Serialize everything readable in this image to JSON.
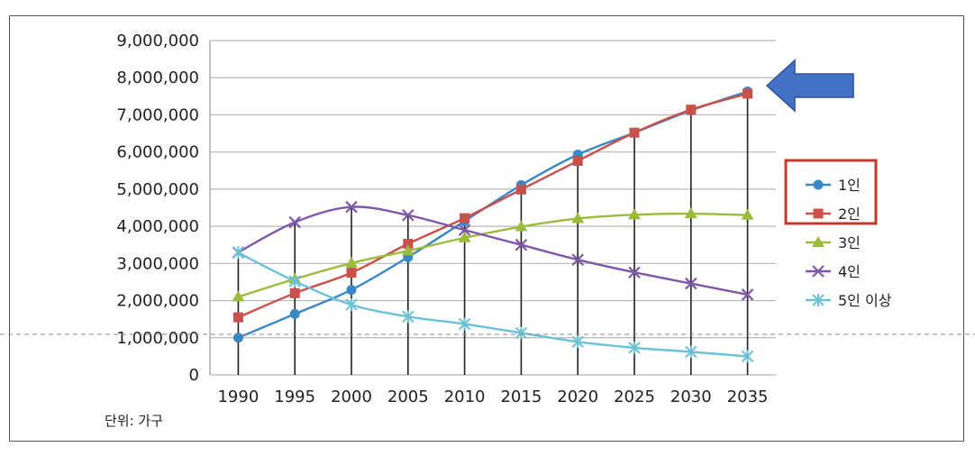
{
  "chart_data": {
    "type": "line",
    "categories": [
      "1990",
      "1995",
      "2000",
      "2005",
      "2010",
      "2015",
      "2020",
      "2025",
      "2030",
      "2035"
    ],
    "ylim": [
      0,
      9000000
    ],
    "y_ticks": [
      0,
      1000000,
      2000000,
      3000000,
      4000000,
      5000000,
      6000000,
      7000000,
      8000000,
      9000000
    ],
    "y_tick_labels": [
      "0",
      "1,000,000",
      "2,000,000",
      "3,000,000",
      "4,000,000",
      "5,000,000",
      "6,000,000",
      "7,000,000",
      "8,000,000",
      "9,000,000"
    ],
    "grid": true,
    "legend_position": "right",
    "unit_label": "단위: 가구",
    "series": [
      {
        "name": "1인",
        "color": "#3a87c8",
        "marker": "circle",
        "values": [
          1000000,
          1640000,
          2290000,
          3170000,
          4140000,
          5110000,
          5930000,
          6520000,
          7120000,
          7630000
        ]
      },
      {
        "name": "2인",
        "color": "#c9504b",
        "marker": "square",
        "values": [
          1550000,
          2200000,
          2750000,
          3530000,
          4220000,
          4990000,
          5760000,
          6520000,
          7140000,
          7570000
        ]
      },
      {
        "name": "3인",
        "color": "#9bbb3c",
        "marker": "triangle",
        "values": [
          2100000,
          2580000,
          3010000,
          3340000,
          3690000,
          3990000,
          4210000,
          4310000,
          4340000,
          4300000
        ]
      },
      {
        "name": "4인",
        "color": "#7e57a8",
        "marker": "x",
        "values": [
          3300000,
          4110000,
          4520000,
          4300000,
          3900000,
          3500000,
          3100000,
          2760000,
          2460000,
          2160000
        ]
      },
      {
        "name": "5인 이상",
        "color": "#6bc1d6",
        "marker": "star",
        "values": [
          3290000,
          2520000,
          1890000,
          1570000,
          1370000,
          1130000,
          890000,
          730000,
          620000,
          500000
        ]
      }
    ]
  },
  "annotations": {
    "highlight_box_color": "#c0392b",
    "arrow_color": "#4472c4"
  }
}
